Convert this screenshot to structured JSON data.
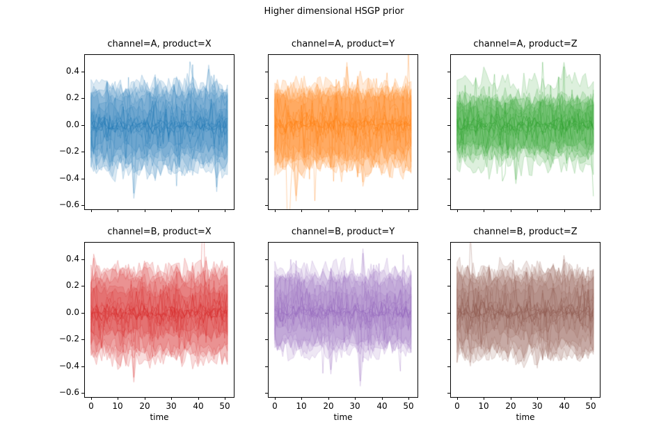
{
  "chart_data": {
    "type": "line",
    "title": "Higher dimensional HSGP prior",
    "xlabel": "time",
    "ylabel": "",
    "grid": false,
    "x_ticks": [
      0,
      10,
      20,
      30,
      40,
      50
    ],
    "x_tick_labels": [
      "0",
      "10",
      "20",
      "30",
      "40",
      "50"
    ],
    "y_ticks": [
      0.4,
      0.2,
      0.0,
      -0.2,
      -0.4,
      -0.6
    ],
    "y_tick_labels": [
      "0.4",
      "0.2",
      "0.0",
      "−0.2",
      "−0.4",
      "−0.6"
    ],
    "xlim": [
      -2.3,
      53.4
    ],
    "ylim": [
      -0.631,
      0.525
    ],
    "x_range": [
      0,
      51
    ],
    "n_time_points": 52,
    "prior_samples": {
      "n_hdi_bands": 6,
      "n_sample_lines": 11,
      "band_envelope": [
        -0.33,
        0.33
      ],
      "line_amplitudes": [
        0.025,
        0.025,
        0.03,
        0.04,
        0.055,
        0.07,
        0.085,
        0.1,
        0.115,
        0.13,
        0.15
      ],
      "mean": 0
    },
    "subplots": [
      {
        "row": 0,
        "col": 0,
        "title": "channel=A, product=X",
        "color": "#1f77b4",
        "seed": 11,
        "spikes": [
          [
            16,
            -0.55
          ],
          [
            47,
            -0.5
          ],
          [
            44,
            0.45
          ]
        ]
      },
      {
        "row": 0,
        "col": 1,
        "title": "channel=A, product=Y",
        "color": "#ff7f0e",
        "seed": 22,
        "spikes": [
          [
            8,
            -0.57
          ],
          [
            33,
            -0.46
          ],
          [
            27,
            0.47
          ]
        ]
      },
      {
        "row": 0,
        "col": 2,
        "title": "channel=A, product=Z",
        "color": "#2ca02c",
        "seed": 33,
        "spikes": [
          [
            40,
            0.47
          ],
          [
            22,
            -0.44
          ]
        ]
      },
      {
        "row": 1,
        "col": 0,
        "title": "channel=B, product=X",
        "color": "#d62728",
        "seed": 44,
        "spikes": [
          [
            1,
            0.44
          ],
          [
            16,
            -0.52
          ],
          [
            43,
            0.42
          ]
        ]
      },
      {
        "row": 1,
        "col": 1,
        "title": "channel=B, product=Y",
        "color": "#9467bd",
        "seed": 55,
        "spikes": [
          [
            33,
            0.48
          ],
          [
            32,
            -0.55
          ],
          [
            21,
            -0.46
          ]
        ]
      },
      {
        "row": 1,
        "col": 2,
        "title": "channel=B, product=Z",
        "color": "#8c564b",
        "seed": 66,
        "spikes": [
          [
            40,
            0.43
          ],
          [
            5,
            -0.4
          ]
        ]
      }
    ]
  }
}
